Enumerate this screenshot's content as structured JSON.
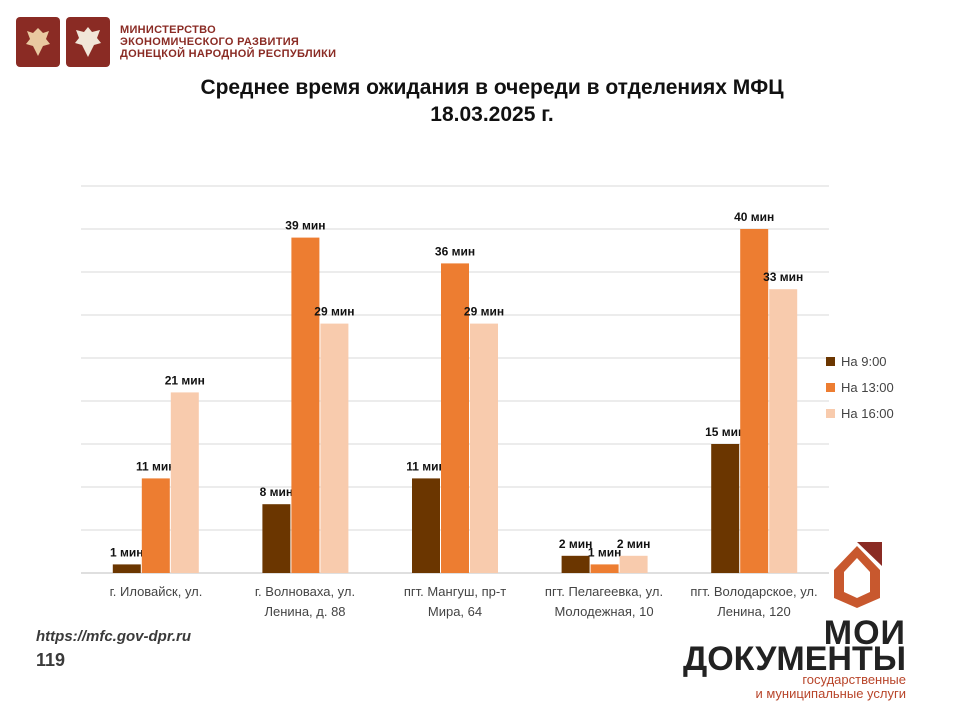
{
  "header": {
    "ministry_lines": [
      "МИНИСТЕРСТВО",
      "ЭКОНОМИЧЕСКОГО РАЗВИТИЯ",
      "ДОНЕЦКОЙ НАРОДНОЙ РЕСПУБЛИКИ"
    ]
  },
  "colors": {
    "brand": "#8a2b24",
    "s9": "#6b3600",
    "s13": "#ed7d31",
    "s16": "#f8cbad",
    "grid": "#d9d9d9",
    "accent": "#b8452a"
  },
  "chart_data": {
    "type": "bar",
    "title": "Среднее время ожидания в очереди в отделениях МФЦ",
    "subtitle": "18.03.2025 г.",
    "categories": [
      [
        "г. Иловайск, ул."
      ],
      [
        "г. Волноваха, ул.",
        "Ленина, д. 88"
      ],
      [
        "пгт. Мангуш, пр-т",
        "Мира, 64"
      ],
      [
        "пгт. Пелагеевка, ул.",
        "Молодежная, 10"
      ],
      [
        "пгт. Володарское, ул.",
        "Ленина, 120"
      ]
    ],
    "series": [
      {
        "name": "На 9:00",
        "values": [
          1,
          8,
          11,
          2,
          15
        ],
        "labels": [
          "1 мин",
          "8 мин",
          "11 мин",
          "2 мин",
          "15 мин"
        ]
      },
      {
        "name": "На 13:00",
        "values": [
          11,
          39,
          36,
          1,
          40
        ],
        "labels": [
          "11 мин",
          "39 мин",
          "36 мин",
          "1 мин",
          "40 мин"
        ]
      },
      {
        "name": "На 16:00",
        "values": [
          21,
          29,
          29,
          2,
          33
        ],
        "labels": [
          "21 мин",
          "29 мин",
          "29 мин",
          "2 мин",
          "33 мин"
        ]
      }
    ],
    "ylim": [
      0,
      45
    ],
    "grid": true,
    "legend": "right"
  },
  "footer": {
    "url": "https://mfc.gov-dpr.ru",
    "number": "119"
  },
  "brand": {
    "line1": "МОИ",
    "line2": "ДОКУМЕНТЫ",
    "sub1": "государственные",
    "sub2": "и муниципальные услуги"
  }
}
